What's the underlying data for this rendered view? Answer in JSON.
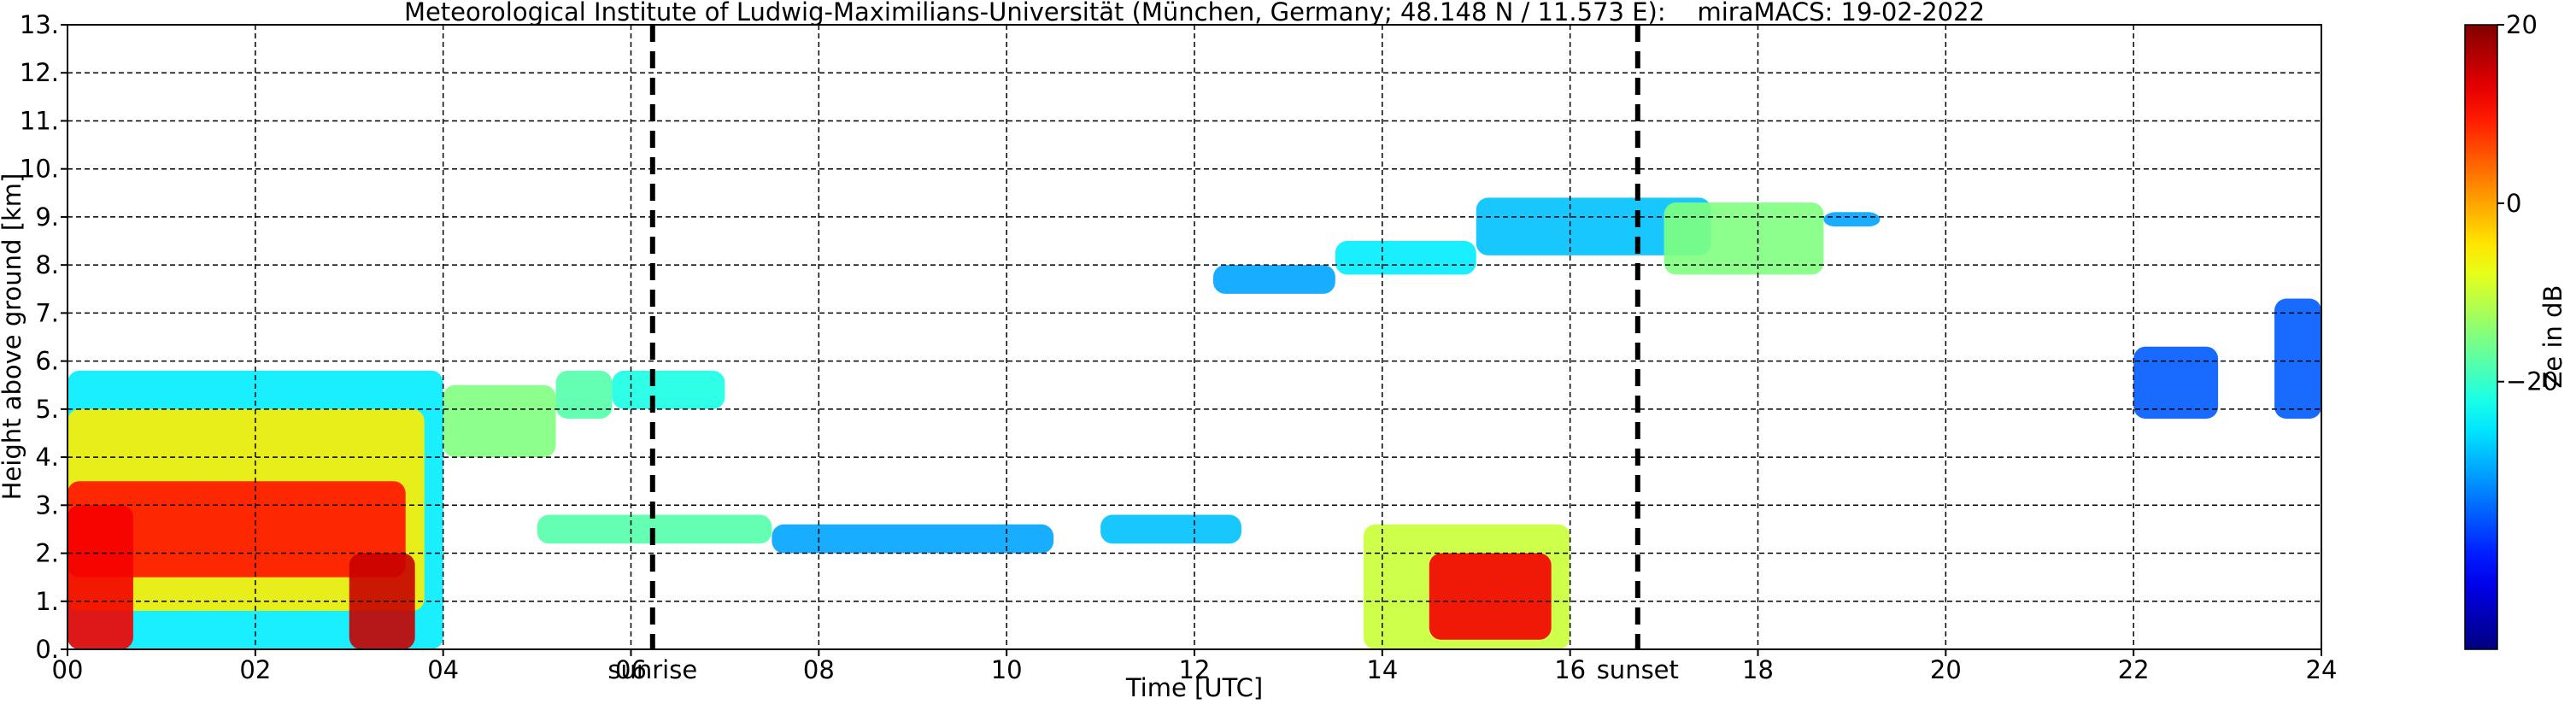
{
  "chart_data": {
    "type": "heatmap",
    "title": "Meteorological Institute of Ludwig-Maximilians-Universität (München, Germany; 48.148 N / 11.573 E):    miraMACS: 19-02-2022",
    "x_label": "Time [UTC]",
    "y_label": "Height above ground [km]",
    "xlim": [
      0,
      24
    ],
    "xticks": [
      {
        "value": 0,
        "label": "00"
      },
      {
        "value": 2,
        "label": "02"
      },
      {
        "value": 4,
        "label": "04"
      },
      {
        "value": 6,
        "label": "06"
      },
      {
        "value": 8,
        "label": "08"
      },
      {
        "value": 10,
        "label": "10"
      },
      {
        "value": 12,
        "label": "12"
      },
      {
        "value": 14,
        "label": "14"
      },
      {
        "value": 16,
        "label": "16"
      },
      {
        "value": 18,
        "label": "18"
      },
      {
        "value": 20,
        "label": "20"
      },
      {
        "value": 22,
        "label": "22"
      },
      {
        "value": 24,
        "label": "24"
      }
    ],
    "ylim": [
      0,
      13
    ],
    "yticks": [
      {
        "value": 0,
        "label": "0."
      },
      {
        "value": 1,
        "label": "1."
      },
      {
        "value": 2,
        "label": "2."
      },
      {
        "value": 3,
        "label": "3."
      },
      {
        "value": 4,
        "label": "4."
      },
      {
        "value": 5,
        "label": "5."
      },
      {
        "value": 6,
        "label": "6."
      },
      {
        "value": 7,
        "label": "7."
      },
      {
        "value": 8,
        "label": "8."
      },
      {
        "value": 9,
        "label": "9."
      },
      {
        "value": 10,
        "label": "10."
      },
      {
        "value": 11,
        "label": "11."
      },
      {
        "value": 12,
        "label": "12."
      },
      {
        "value": 13,
        "label": "13."
      }
    ],
    "grid": true,
    "colormap": "jet",
    "colorbar_label": "Ze in dB",
    "clim": [
      -50,
      20
    ],
    "cticks": [
      20,
      0,
      {
        "value": -20,
        "label": "−20"
      }
    ],
    "day_markers": [
      {
        "label": "sunrise",
        "x": 6.23
      },
      {
        "label": "sunset",
        "x": 16.72
      }
    ],
    "regions": [
      {
        "x0": 0,
        "x1": 4.0,
        "y0": 0,
        "y1": 5.8,
        "ze": -25
      },
      {
        "x0": 0,
        "x1": 3.8,
        "y0": 0.8,
        "y1": 5.0,
        "ze": -5
      },
      {
        "x0": 0,
        "x1": 3.6,
        "y0": 1.5,
        "y1": 3.5,
        "ze": 10
      },
      {
        "x0": 0,
        "x1": 0.7,
        "y0": 0,
        "y1": 3,
        "ze": 12
      },
      {
        "x0": 3.0,
        "x1": 3.7,
        "y0": 0,
        "y1": 2,
        "ze": 15
      },
      {
        "x0": 4.0,
        "x1": 5.2,
        "y0": 4.0,
        "y1": 5.5,
        "ze": -15
      },
      {
        "x0": 5.2,
        "x1": 5.8,
        "y0": 4.8,
        "y1": 5.8,
        "ze": -18
      },
      {
        "x0": 5.8,
        "x1": 7.0,
        "y0": 5.0,
        "y1": 5.8,
        "ze": -22
      },
      {
        "x0": 5.0,
        "x1": 7.5,
        "y0": 2.2,
        "y1": 2.8,
        "ze": -18
      },
      {
        "x0": 7.5,
        "x1": 10.5,
        "y0": 2.0,
        "y1": 2.6,
        "ze": -30
      },
      {
        "x0": 11,
        "x1": 12.5,
        "y0": 2.2,
        "y1": 2.8,
        "ze": -28
      },
      {
        "x0": 13.8,
        "x1": 16.0,
        "y0": 0,
        "y1": 2.6,
        "ze": -10
      },
      {
        "x0": 14.5,
        "x1": 15.8,
        "y0": 0.2,
        "y1": 2.0,
        "ze": 12
      },
      {
        "x0": 12.2,
        "x1": 13.5,
        "y0": 7.4,
        "y1": 8.0,
        "ze": -30
      },
      {
        "x0": 13.5,
        "x1": 15.0,
        "y0": 7.8,
        "y1": 8.5,
        "ze": -25
      },
      {
        "x0": 15.0,
        "x1": 17.5,
        "y0": 8.2,
        "y1": 9.4,
        "ze": -28
      },
      {
        "x0": 17.0,
        "x1": 18.7,
        "y0": 7.8,
        "y1": 9.3,
        "ze": -15
      },
      {
        "x0": 18.7,
        "x1": 19.3,
        "y0": 8.8,
        "y1": 9.1,
        "ze": -30
      },
      {
        "x0": 22.0,
        "x1": 22.9,
        "y0": 4.8,
        "y1": 6.3,
        "ze": -35
      },
      {
        "x0": 23.5,
        "x1": 24,
        "y0": 4.8,
        "y1": 7.3,
        "ze": -35
      }
    ]
  }
}
